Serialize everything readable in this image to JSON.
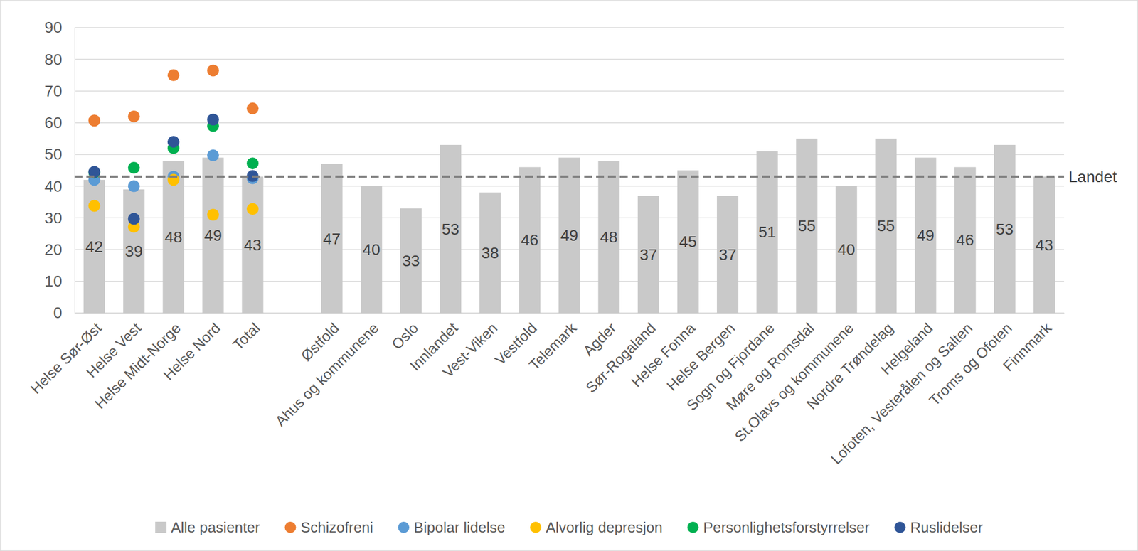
{
  "chart_data": {
    "type": "bar",
    "categories": [
      "Helse Sør-Øst",
      "Helse Vest",
      "Helse Midt-Norge",
      "Helse Nord",
      "Total",
      null,
      "Østfold",
      "Ahus og kommunene",
      "Oslo",
      "Innlandet",
      "Vest-Viken",
      "Vestfold",
      "Telemark",
      "Agder",
      "Sør-Rogaland",
      "Helse Fonna",
      "Helse Bergen",
      "Sogn og Fjordane",
      "Møre og Romsdal",
      "St.Olavs og kommunene",
      "Nordre Trøndelag",
      "Helgeland",
      "Lofoten, Vesterålen og Salten",
      "Troms og Ofoten",
      "Finnmark"
    ],
    "ylim": [
      0,
      90
    ],
    "yticks": [
      0,
      10,
      20,
      30,
      40,
      50,
      60,
      70,
      80,
      90
    ],
    "grid": true,
    "legend": "bottom",
    "data_labels": true,
    "series": [
      {
        "name": "Alle pasienter",
        "type": "bar",
        "color": "#C9C9C9",
        "values": [
          42,
          39,
          48,
          49,
          43,
          null,
          47,
          40,
          33,
          53,
          38,
          46,
          49,
          48,
          37,
          45,
          37,
          51,
          55,
          40,
          55,
          49,
          46,
          53,
          43
        ]
      },
      {
        "name": "Schizofreni",
        "type": "scatter",
        "marker": "circle",
        "color": "#ED7D31",
        "values": [
          60.7,
          62,
          75,
          76.5,
          64.5,
          null,
          null,
          null,
          null,
          null,
          null,
          null,
          null,
          null,
          null,
          null,
          null,
          null,
          null,
          null,
          null,
          null,
          null,
          null,
          null
        ]
      },
      {
        "name": "Bipolar lidelse",
        "type": "scatter",
        "marker": "circle",
        "color": "#5B9BD5",
        "values": [
          42,
          40,
          43,
          49.7,
          42.5,
          null,
          null,
          null,
          null,
          null,
          null,
          null,
          null,
          null,
          null,
          null,
          null,
          null,
          null,
          null,
          null,
          null,
          null,
          null,
          null
        ]
      },
      {
        "name": "Alvorlig depresjon",
        "type": "scatter",
        "marker": "circle",
        "color": "#FFC000",
        "values": [
          33.8,
          27.2,
          42,
          31,
          32.8,
          null,
          null,
          null,
          null,
          null,
          null,
          null,
          null,
          null,
          null,
          null,
          null,
          null,
          null,
          null,
          null,
          null,
          null,
          null,
          null
        ]
      },
      {
        "name": "Personlighetsforstyrrelser",
        "type": "scatter",
        "marker": "circle",
        "color": "#00B050",
        "values": [
          44.3,
          45.8,
          52,
          59,
          47.2,
          null,
          null,
          null,
          null,
          null,
          null,
          null,
          null,
          null,
          null,
          null,
          null,
          null,
          null,
          null,
          null,
          null,
          null,
          null,
          null
        ]
      },
      {
        "name": "Ruslidelser",
        "type": "scatter",
        "marker": "circle",
        "color": "#2F5597",
        "values": [
          44.5,
          29.7,
          54,
          61,
          43.2,
          null,
          null,
          null,
          null,
          null,
          null,
          null,
          null,
          null,
          null,
          null,
          null,
          null,
          null,
          null,
          null,
          null,
          null,
          null,
          null
        ]
      }
    ],
    "reference_lines": [
      {
        "label": "Landet",
        "value": 43,
        "line_style": "dashed",
        "color": "#7F7F7F"
      }
    ]
  }
}
